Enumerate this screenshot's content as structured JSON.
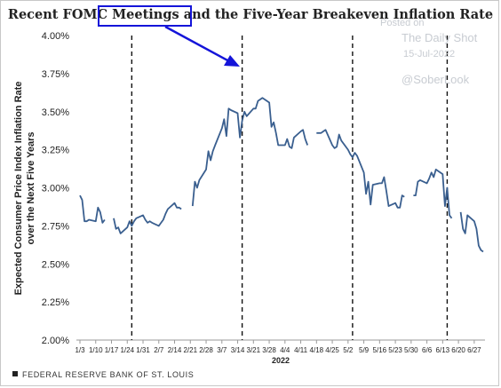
{
  "title": "Recent FOMC Meetings and the Five-Year Breakeven Inflation Rate",
  "watermark": {
    "posted_on": "Posted on",
    "site": "The Daily Shot",
    "date": "15-Jul-2022",
    "handle": "@SoberLook"
  },
  "footer": "FEDERAL RESERVE BANK OF ST. LOUIS",
  "colors": {
    "line": "#3a5f8f",
    "callout": "#1414d9",
    "arrow": "#1414d9"
  },
  "chart_data": {
    "type": "line",
    "title": "Recent FOMC Meetings and the Five-Year Breakeven Inflation Rate",
    "xlabel": "2022",
    "ylabel": "Expected Consumer Price Index Inflation Rate over the Next Five Years",
    "ylim": [
      2.0,
      4.0
    ],
    "yticks": [
      "2.00%",
      "2.25%",
      "2.50%",
      "2.75%",
      "3.00%",
      "3.25%",
      "3.50%",
      "3.75%",
      "4.00%"
    ],
    "ytick_values": [
      2.0,
      2.25,
      2.5,
      2.75,
      3.0,
      3.25,
      3.5,
      3.75,
      4.0
    ],
    "xlim": [
      "2022-01-03",
      "2022-07-01"
    ],
    "xticks": [
      "1/3",
      "1/10",
      "1/17",
      "1/24",
      "1/31",
      "2/7",
      "2/14",
      "2/21",
      "2/28",
      "3/7",
      "3/14",
      "3/21",
      "3/28",
      "4/4",
      "4/11",
      "4/18",
      "4/25",
      "5/2",
      "5/9",
      "5/16",
      "5/23",
      "5/30",
      "6/6",
      "6/13",
      "6/20",
      "6/27"
    ],
    "xtick_dates": [
      "2022-01-03",
      "2022-01-10",
      "2022-01-17",
      "2022-01-24",
      "2022-01-31",
      "2022-02-07",
      "2022-02-14",
      "2022-02-21",
      "2022-02-28",
      "2022-03-07",
      "2022-03-14",
      "2022-03-21",
      "2022-03-28",
      "2022-04-04",
      "2022-04-11",
      "2022-04-18",
      "2022-04-25",
      "2022-05-02",
      "2022-05-09",
      "2022-05-16",
      "2022-05-23",
      "2022-05-30",
      "2022-06-06",
      "2022-06-13",
      "2022-06-20",
      "2022-06-27"
    ],
    "fomc_meetings": [
      "2022-01-26",
      "2022-03-16",
      "2022-05-04",
      "2022-06-15"
    ],
    "grid": false,
    "series": [
      {
        "segments": [
          [
            [
              "2022-01-03",
              2.95
            ],
            [
              "2022-01-04",
              2.92
            ],
            [
              "2022-01-05",
              2.78
            ],
            [
              "2022-01-06",
              2.78
            ],
            [
              "2022-01-07",
              2.79
            ],
            [
              "2022-01-10",
              2.78
            ],
            [
              "2022-01-11",
              2.87
            ],
            [
              "2022-01-12",
              2.84
            ],
            [
              "2022-01-13",
              2.77
            ],
            [
              "2022-01-14",
              2.79
            ]
          ],
          [
            [
              "2022-01-18",
              2.8
            ],
            [
              "2022-01-19",
              2.73
            ],
            [
              "2022-01-20",
              2.74
            ],
            [
              "2022-01-21",
              2.7
            ],
            [
              "2022-01-24",
              2.74
            ],
            [
              "2022-01-25",
              2.78
            ],
            [
              "2022-01-26",
              2.75
            ],
            [
              "2022-01-27",
              2.78
            ],
            [
              "2022-01-28",
              2.8
            ],
            [
              "2022-01-31",
              2.82
            ],
            [
              "2022-02-01",
              2.79
            ],
            [
              "2022-02-02",
              2.77
            ],
            [
              "2022-02-03",
              2.78
            ],
            [
              "2022-02-04",
              2.77
            ],
            [
              "2022-02-07",
              2.75
            ],
            [
              "2022-02-08",
              2.77
            ],
            [
              "2022-02-09",
              2.79
            ],
            [
              "2022-02-10",
              2.83
            ],
            [
              "2022-02-11",
              2.86
            ],
            [
              "2022-02-14",
              2.9
            ],
            [
              "2022-02-15",
              2.87
            ],
            [
              "2022-02-16",
              2.87
            ],
            [
              "2022-02-17",
              2.86
            ]
          ],
          [
            [
              "2022-02-22",
              2.88
            ],
            [
              "2022-02-23",
              3.04
            ],
            [
              "2022-02-24",
              3.0
            ],
            [
              "2022-02-25",
              3.05
            ],
            [
              "2022-02-28",
              3.12
            ],
            [
              "2022-03-01",
              3.24
            ],
            [
              "2022-03-02",
              3.18
            ],
            [
              "2022-03-03",
              3.24
            ],
            [
              "2022-03-04",
              3.28
            ],
            [
              "2022-03-07",
              3.39
            ],
            [
              "2022-03-08",
              3.45
            ],
            [
              "2022-03-09",
              3.34
            ],
            [
              "2022-03-10",
              3.52
            ],
            [
              "2022-03-11",
              3.51
            ],
            [
              "2022-03-14",
              3.49
            ],
            [
              "2022-03-15",
              3.33
            ],
            [
              "2022-03-16",
              3.44
            ],
            [
              "2022-03-17",
              3.5
            ],
            [
              "2022-03-18",
              3.47
            ],
            [
              "2022-03-21",
              3.52
            ],
            [
              "2022-03-22",
              3.52
            ],
            [
              "2022-03-23",
              3.57
            ],
            [
              "2022-03-24",
              3.58
            ],
            [
              "2022-03-25",
              3.59
            ],
            [
              "2022-03-28",
              3.56
            ],
            [
              "2022-03-29",
              3.4
            ],
            [
              "2022-03-30",
              3.43
            ],
            [
              "2022-03-31",
              3.36
            ],
            [
              "2022-04-01",
              3.28
            ],
            [
              "2022-04-04",
              3.28
            ],
            [
              "2022-04-05",
              3.32
            ],
            [
              "2022-04-06",
              3.27
            ],
            [
              "2022-04-07",
              3.26
            ],
            [
              "2022-04-08",
              3.33
            ],
            [
              "2022-04-11",
              3.37
            ],
            [
              "2022-04-12",
              3.38
            ],
            [
              "2022-04-13",
              3.32
            ],
            [
              "2022-04-14",
              3.28
            ]
          ],
          [
            [
              "2022-04-18",
              3.36
            ],
            [
              "2022-04-19",
              3.36
            ],
            [
              "2022-04-20",
              3.36
            ],
            [
              "2022-04-21",
              3.37
            ],
            [
              "2022-04-22",
              3.38
            ],
            [
              "2022-04-25",
              3.28
            ],
            [
              "2022-04-26",
              3.26
            ],
            [
              "2022-04-27",
              3.27
            ],
            [
              "2022-04-28",
              3.35
            ],
            [
              "2022-04-29",
              3.31
            ],
            [
              "2022-05-02",
              3.25
            ],
            [
              "2022-05-03",
              3.22
            ],
            [
              "2022-05-04",
              3.2
            ],
            [
              "2022-05-05",
              3.23
            ],
            [
              "2022-05-06",
              3.21
            ],
            [
              "2022-05-09",
              3.1
            ],
            [
              "2022-05-10",
              2.96
            ],
            [
              "2022-05-11",
              3.04
            ],
            [
              "2022-05-12",
              2.89
            ],
            [
              "2022-05-13",
              3.02
            ],
            [
              "2022-05-16",
              3.03
            ],
            [
              "2022-05-17",
              3.03
            ],
            [
              "2022-05-18",
              3.07
            ],
            [
              "2022-05-19",
              2.98
            ],
            [
              "2022-05-20",
              2.88
            ],
            [
              "2022-05-23",
              2.9
            ],
            [
              "2022-05-24",
              2.87
            ],
            [
              "2022-05-25",
              2.87
            ],
            [
              "2022-05-26",
              2.95
            ],
            [
              "2022-05-27",
              2.94
            ]
          ],
          [
            [
              "2022-05-31",
              2.95
            ],
            [
              "2022-06-01",
              2.95
            ],
            [
              "2022-06-02",
              3.04
            ],
            [
              "2022-06-03",
              3.05
            ],
            [
              "2022-06-06",
              3.03
            ],
            [
              "2022-06-07",
              3.06
            ],
            [
              "2022-06-08",
              3.1
            ],
            [
              "2022-06-09",
              3.07
            ],
            [
              "2022-06-10",
              3.12
            ],
            [
              "2022-06-13",
              3.09
            ],
            [
              "2022-06-14",
              2.88
            ],
            [
              "2022-06-15",
              3.0
            ],
            [
              "2022-06-16",
              2.82
            ],
            [
              "2022-06-17",
              2.8
            ]
          ],
          [
            [
              "2022-06-21",
              2.84
            ],
            [
              "2022-06-22",
              2.73
            ],
            [
              "2022-06-23",
              2.7
            ],
            [
              "2022-06-24",
              2.82
            ],
            [
              "2022-06-27",
              2.78
            ],
            [
              "2022-06-28",
              2.73
            ],
            [
              "2022-06-29",
              2.62
            ],
            [
              "2022-06-30",
              2.59
            ],
            [
              "2022-07-01",
              2.58
            ]
          ]
        ]
      }
    ]
  }
}
